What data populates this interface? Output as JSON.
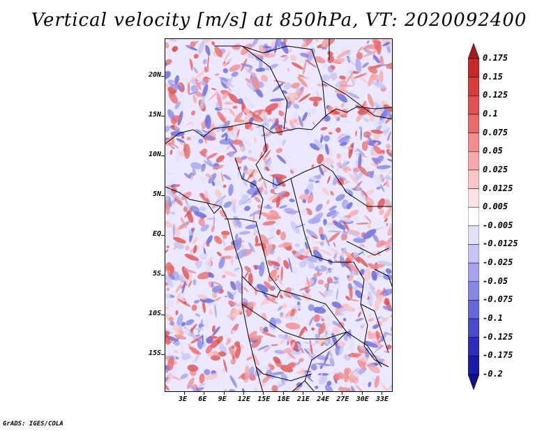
{
  "title": "Vertical velocity [m/s] at 850hPa, VT: 2020092400",
  "credit": "GrADS: IGES/COLA",
  "map": {
    "lat_labels": [
      "20N",
      "15N",
      "10N",
      "5N",
      "EQ",
      "5S",
      "10S",
      "15S"
    ],
    "lon_labels": [
      "3E",
      "6E",
      "9E",
      "12E",
      "15E",
      "18E",
      "21E",
      "24E",
      "27E",
      "30E",
      "33E"
    ]
  },
  "colorbar": {
    "labels": [
      "0.175",
      "0.15",
      "0.125",
      "0.1",
      "0.075",
      "0.05",
      "0.025",
      "0.0125",
      "0.005",
      "-0.005",
      "-0.0125",
      "-0.025",
      "-0.05",
      "-0.075",
      "-0.1",
      "-0.125",
      "-0.175",
      "-0.2"
    ],
    "colors": [
      "#a51c1c",
      "#c72828",
      "#d63c3c",
      "#e25050",
      "#ea6b6b",
      "#f18d8d",
      "#f6a9a9",
      "#fac5c5",
      "#fde2e2",
      "#ffffff",
      "#e1e1fb",
      "#c5c5f5",
      "#a5a5ee",
      "#8787e6",
      "#6767dc",
      "#4a4ad0",
      "#2e2ebe",
      "#1a1aa8",
      "#10108a"
    ]
  }
}
